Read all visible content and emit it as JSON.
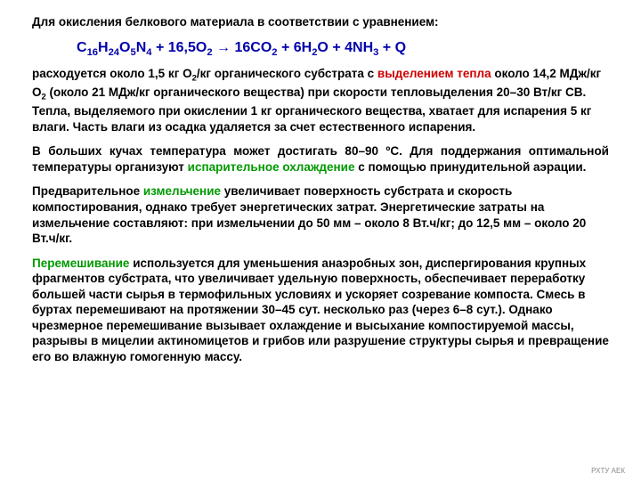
{
  "p1": "Для окисления белкового материала в соответствии с уравнением:",
  "eq": {
    "c1": "C",
    "s1": "16",
    "c2": "H",
    "s2": "24",
    "c3": "O",
    "s3": "5",
    "c4": "N",
    "s4": "4",
    "plus1": "  +  ",
    "o2a": "16,5O",
    "s5": "2",
    "arrow": "   →   ",
    "co2": "16CO",
    "s6": "2",
    "plus2": "  +  ",
    "h2o": "6H",
    "s7": "2",
    "h2ob": "O",
    "plus3": "  +  ",
    "nh3": "4NH",
    "s8": "3",
    "plus4": "  +  ",
    "q": "Q"
  },
  "p2a": "расходуется около 1,5 кг O",
  "p2sub": "2",
  "p2b": "/кг органического субстрата с ",
  "p2red": "выделением тепла ",
  "p2c": "около 14,2 МДж/кг O",
  "p2sub2": "2",
  "p2d": " (около 21 МДж/кг органического вещества) при скорости тепловыделения 20–30 Вт/кг СВ. Тепла, выделяемого при окислении 1 кг органического вещества, хватает для испарения 5 кг влаги. Часть влаги из осадка удаляется за счет естественного испарения.",
  "p3a": "В больших кучах температура может достигать 80–90 ºС. Для поддержания оптимальной температуры организуют ",
  "p3green": "испарительное охлаждение",
  "p3b": " с помощью принудительной аэрации.",
  "p4a": "Предварительное ",
  "p4green": "измельчение",
  "p4b": " увеличивает поверхность субстрата и скорость компостирования, однако требует энергетических затрат. Энергетические затраты на измельчение составляют: при измельчении до 50 мм – около 8 Вт.ч/кг; до 12,5 мм – около 20 Вт.ч/кг.",
  "p5green": "Перемешивание",
  "p5": " используется для уменьшения анаэробных зон, диспергирования крупных фрагментов субстрата, что увеличивает удельную поверхность, обеспечивает переработку большей части сырья в термофильных условиях и ускоряет созревание компоста. Смесь в буртах перемешивают на протяжении 30–45 сут. несколько раз (через 6–8 сут.). Однако чрезмерное перемешивание вызывает охлаждение и высыхание компостируемой массы, разрывы в мицелии актиномицетов и грибов или разрушение структуры сырья и превращение его во влажную гомогенную массу.",
  "footer": "РХТУ АЕК"
}
